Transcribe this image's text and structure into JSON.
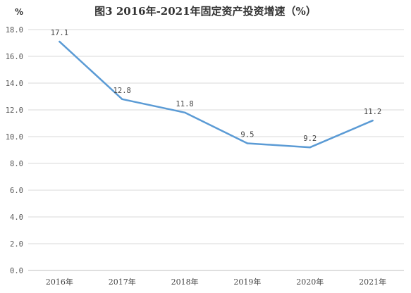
{
  "chart_data": {
    "type": "line",
    "title": "图3  2016年-2021年固定资产投资增速（%）",
    "unit_label": "%",
    "categories": [
      "2016年",
      "2017年",
      "2018年",
      "2019年",
      "2020年",
      "2021年"
    ],
    "series": [
      {
        "values": [
          17.1,
          12.8,
          11.8,
          9.5,
          9.2,
          11.2
        ],
        "data_labels": [
          "17.1",
          "12.8",
          "11.8",
          "9.5",
          "9.2",
          "11.2"
        ]
      }
    ],
    "ylim": [
      0,
      18
    ],
    "yticks": [
      "0.0",
      "2.0",
      "4.0",
      "6.0",
      "8.0",
      "10.0",
      "12.0",
      "14.0",
      "16.0",
      "18.0"
    ],
    "grid": true,
    "legend": "none",
    "line_color": "#5b9bd5"
  }
}
